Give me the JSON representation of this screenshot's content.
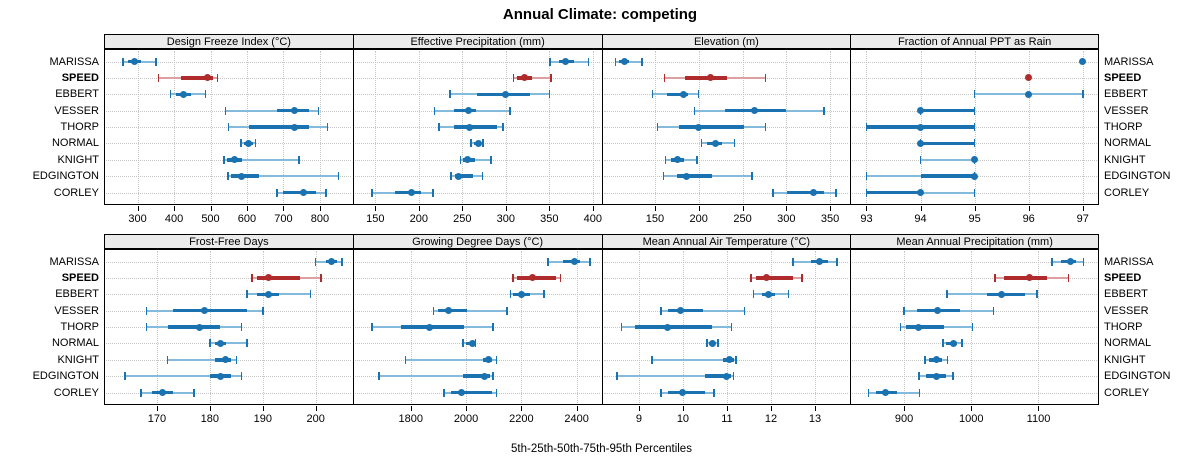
{
  "chart_data": {
    "type": "scatter",
    "subtype": "percentile-dotplot-trellis",
    "title": "Annual Climate: competing",
    "caption": "5th-25th-50th-75th-95th Percentiles",
    "legend_position": "none",
    "grid": true,
    "percentile_levels": [
      5,
      25,
      50,
      75,
      95
    ],
    "stations": [
      {
        "name": "MARISSA",
        "highlight": false
      },
      {
        "name": "SPEED",
        "highlight": true
      },
      {
        "name": "EBBERT",
        "highlight": false
      },
      {
        "name": "VESSER",
        "highlight": false
      },
      {
        "name": "THORP",
        "highlight": false
      },
      {
        "name": "NORMAL",
        "highlight": false
      },
      {
        "name": "KNIGHT",
        "highlight": false
      },
      {
        "name": "EDGINGTON",
        "highlight": false
      },
      {
        "name": "CORLEY",
        "highlight": false
      }
    ],
    "panels": [
      {
        "title": "Design Freeze Index (°C)",
        "row": 0,
        "col": 0,
        "xlim": [
          208,
          890
        ],
        "ticks": [
          300,
          400,
          500,
          600,
          700,
          800
        ],
        "values": {
          "MARISSA": [
            260,
            275,
            291,
            309,
            351
          ],
          "SPEED": [
            358,
            420,
            492,
            507,
            519
          ],
          "EBBERT": [
            390,
            406,
            427,
            447,
            486
          ],
          "VESSER": [
            541,
            683,
            729,
            770,
            796
          ],
          "THORP": [
            550,
            605,
            730,
            770,
            821
          ],
          "NORMAL": [
            584,
            592,
            605,
            616,
            624
          ],
          "KNIGHT": [
            537,
            546,
            567,
            587,
            743
          ],
          "EDGINGTON": [
            548,
            555,
            584,
            633,
            851
          ],
          "CORLEY": [
            683,
            700,
            756,
            788,
            816
          ]
        }
      },
      {
        "title": "Effective Precipitation (mm)",
        "row": 0,
        "col": 1,
        "xlim": [
          124,
          410
        ],
        "ticks": [
          150,
          200,
          250,
          300,
          350,
          400
        ],
        "values": {
          "MARISSA": [
            351,
            361,
            369,
            378,
            395
          ],
          "SPEED": [
            309,
            313,
            321,
            330,
            352
          ],
          "EBBERT": [
            236,
            267,
            300,
            328,
            350
          ],
          "VESSER": [
            218,
            240,
            257,
            266,
            305
          ],
          "THORP": [
            223,
            240,
            258,
            290,
            297
          ],
          "NORMAL": [
            260,
            263,
            269,
            272,
            274
          ],
          "KNIGHT": [
            248,
            251,
            256,
            264,
            283
          ],
          "EDGINGTON": [
            237,
            241,
            246,
            262,
            273
          ],
          "CORLEY": [
            146,
            173,
            192,
            202,
            216
          ]
        }
      },
      {
        "title": "Elevation (m)",
        "row": 0,
        "col": 2,
        "xlim": [
          89,
          373
        ],
        "ticks": [
          150,
          200,
          250,
          300,
          350
        ],
        "values": {
          "MARISSA": [
            105,
            109,
            115,
            120,
            135
          ],
          "SPEED": [
            161,
            184,
            213,
            232,
            276
          ],
          "EBBERT": [
            147,
            164,
            183,
            188,
            200
          ],
          "VESSER": [
            195,
            230,
            264,
            300,
            343
          ],
          "THORP": [
            153,
            178,
            200,
            252,
            276
          ],
          "NORMAL": [
            203,
            210,
            219,
            227,
            241
          ],
          "KNIGHT": [
            162,
            168,
            176,
            183,
            198
          ],
          "EDGINGTON": [
            160,
            175,
            186,
            215,
            261
          ],
          "CORLEY": [
            285,
            301,
            331,
            343,
            357
          ]
        }
      },
      {
        "title": "Fraction of Annual PPT as Rain",
        "row": 0,
        "col": 3,
        "xlim": [
          92.7,
          97.3
        ],
        "ticks": [
          93,
          94,
          95,
          96,
          97
        ],
        "values": {
          "MARISSA": [
            97,
            97,
            97,
            97,
            97
          ],
          "SPEED": [
            96,
            96,
            96,
            96,
            96
          ],
          "EBBERT": [
            95,
            96,
            96,
            96,
            97
          ],
          "VESSER": [
            94,
            94,
            94,
            95,
            95
          ],
          "THORP": [
            93,
            93,
            94,
            95,
            95
          ],
          "NORMAL": [
            94,
            94,
            94,
            95,
            95
          ],
          "KNIGHT": [
            94,
            95,
            95,
            95,
            95
          ],
          "EDGINGTON": [
            93,
            94,
            95,
            95,
            95
          ],
          "CORLEY": [
            93,
            93,
            94,
            94,
            95
          ]
        }
      },
      {
        "title": "Frost-Free Days",
        "row": 1,
        "col": 0,
        "xlim": [
          160,
          207
        ],
        "ticks": [
          170,
          180,
          190,
          200
        ],
        "values": {
          "MARISSA": [
            200,
            202,
            203,
            204,
            205
          ],
          "SPEED": [
            188,
            189,
            191,
            197,
            201
          ],
          "EBBERT": [
            187,
            189,
            191,
            193,
            199
          ],
          "VESSER": [
            168,
            173,
            179,
            187,
            190
          ],
          "THORP": [
            168,
            172,
            178,
            182,
            186
          ],
          "NORMAL": [
            180,
            181,
            182,
            183,
            187
          ],
          "KNIGHT": [
            172,
            181,
            183,
            184,
            185
          ],
          "EDGINGTON": [
            164,
            180,
            182,
            184,
            186
          ],
          "CORLEY": [
            167,
            169,
            171,
            173,
            177
          ]
        }
      },
      {
        "title": "Growing Degree Days (°C)",
        "row": 1,
        "col": 1,
        "xlim": [
          1590,
          2490
        ],
        "ticks": [
          1800,
          2000,
          2200,
          2400
        ],
        "values": {
          "MARISSA": [
            2297,
            2351,
            2394,
            2412,
            2448
          ],
          "SPEED": [
            2170,
            2185,
            2239,
            2325,
            2342
          ],
          "EBBERT": [
            2160,
            2170,
            2202,
            2230,
            2282
          ],
          "VESSER": [
            1882,
            1900,
            1937,
            2003,
            2148
          ],
          "THORP": [
            1660,
            1765,
            1868,
            1994,
            2097
          ],
          "NORMAL": [
            1988,
            2000,
            2022,
            2030,
            2035
          ],
          "KNIGHT": [
            1780,
            2060,
            2080,
            2095,
            2110
          ],
          "EDGINGTON": [
            1685,
            1990,
            2068,
            2085,
            2097
          ],
          "CORLEY": [
            1920,
            1945,
            1985,
            2095,
            2110
          ]
        }
      },
      {
        "title": "Mean Annual Air Temperature (°C)",
        "row": 1,
        "col": 2,
        "xlim": [
          8.15,
          13.8
        ],
        "ticks": [
          9,
          10,
          11,
          12,
          13
        ],
        "values": {
          "MARISSA": [
            12.5,
            12.9,
            13.1,
            13.3,
            13.5
          ],
          "SPEED": [
            11.55,
            11.65,
            11.9,
            12.5,
            12.7
          ],
          "EBBERT": [
            11.6,
            11.8,
            11.95,
            12.1,
            12.4
          ],
          "VESSER": [
            9.5,
            9.65,
            9.95,
            10.45,
            11.4
          ],
          "THORP": [
            8.6,
            8.9,
            9.65,
            10.65,
            11.1
          ],
          "NORMAL": [
            10.55,
            10.6,
            10.67,
            10.73,
            10.8
          ],
          "KNIGHT": [
            9.3,
            10.9,
            11.05,
            11.15,
            11.2
          ],
          "EDGINGTON": [
            8.5,
            10.5,
            11.0,
            11.1,
            11.15
          ],
          "CORLEY": [
            9.5,
            9.65,
            10.0,
            10.5,
            10.7
          ]
        }
      },
      {
        "title": "Mean Annual Precipitation (mm)",
        "row": 1,
        "col": 3,
        "xlim": [
          820,
          1190
        ],
        "ticks": [
          900,
          1000,
          1100
        ],
        "values": {
          "MARISSA": [
            1120,
            1134,
            1148,
            1156,
            1167
          ],
          "SPEED": [
            1035,
            1048,
            1087,
            1112,
            1145
          ],
          "EBBERT": [
            964,
            1023,
            1045,
            1080,
            1098
          ],
          "VESSER": [
            900,
            920,
            950,
            984,
            1033
          ],
          "THORP": [
            895,
            903,
            921,
            960,
            1002
          ],
          "NORMAL": [
            958,
            963,
            973,
            979,
            986
          ],
          "KNIGHT": [
            931,
            937,
            948,
            957,
            965
          ],
          "EDGINGTON": [
            922,
            932,
            949,
            962,
            973
          ],
          "CORLEY": [
            847,
            858,
            873,
            890,
            923
          ]
        }
      }
    ],
    "colors": {
      "normal": "#1a73b0",
      "normal_light": "#84bbdd",
      "highlight": "#b02c2c",
      "highlight_light": "#dca0a0",
      "header_bg": "#ebebeb",
      "grid": "#c6c6c6",
      "border": "#000000"
    }
  }
}
